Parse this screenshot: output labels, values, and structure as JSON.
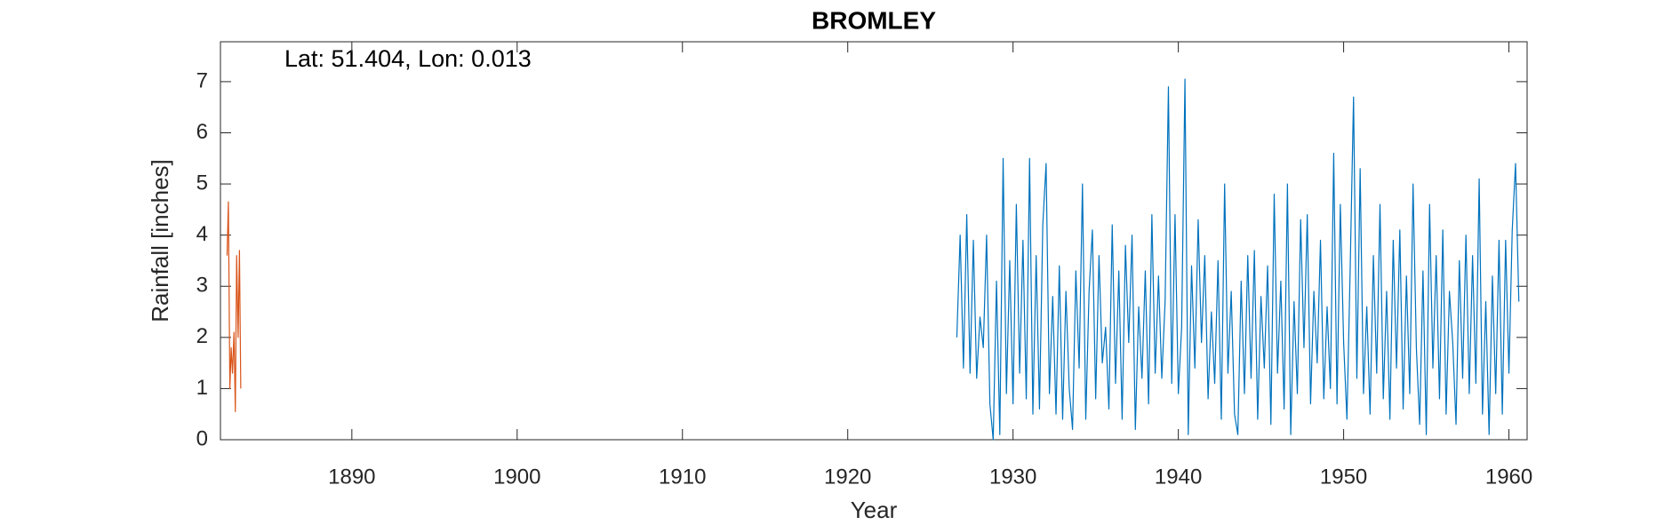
{
  "chart_data": {
    "type": "line",
    "title": "BROMLEY",
    "annotation": "Lat: 51.404, Lon: 0.013",
    "x_label": "Year",
    "y_label": "Rainfall [inches]",
    "xlim": [
      1882.05,
      1961.1
    ],
    "ylim": [
      0,
      7.78
    ],
    "xticks": [
      1890,
      1900,
      1910,
      1920,
      1930,
      1940,
      1950,
      1960
    ],
    "yticks": [
      0,
      1,
      2,
      3,
      4,
      5,
      6,
      7
    ],
    "grid": false,
    "series": [
      {
        "color": "#D95319",
        "x": [
          1882.45,
          1882.53,
          1882.62,
          1882.7,
          1882.78,
          1882.87,
          1882.95,
          1883.03,
          1883.12,
          1883.2,
          1883.28
        ],
        "values": [
          3.6,
          4.65,
          1.0,
          1.8,
          1.3,
          2.1,
          0.55,
          3.6,
          2.0,
          3.7,
          1.0
        ]
      },
      {
        "color": "#0072BD",
        "x": [
          1926.6,
          1926.8,
          1927,
          1927.2,
          1927.4,
          1927.6,
          1927.8,
          1928,
          1928.2,
          1928.4,
          1928.6,
          1928.8,
          1929,
          1929.2,
          1929.4,
          1929.6,
          1929.8,
          1930,
          1930.2,
          1930.4,
          1930.6,
          1930.8,
          1931,
          1931.2,
          1931.4,
          1931.6,
          1931.8,
          1932,
          1932.2,
          1932.4,
          1932.6,
          1932.8,
          1933,
          1933.2,
          1933.4,
          1933.6,
          1933.8,
          1934,
          1934.2,
          1934.4,
          1934.6,
          1934.8,
          1935,
          1935.2,
          1935.4,
          1935.6,
          1935.8,
          1936,
          1936.2,
          1936.4,
          1936.6,
          1936.8,
          1937,
          1937.2,
          1937.4,
          1937.6,
          1937.8,
          1938,
          1938.2,
          1938.4,
          1938.6,
          1938.8,
          1939,
          1939.2,
          1939.4,
          1939.6,
          1939.8,
          1940,
          1940.2,
          1940.4,
          1940.6,
          1940.8,
          1941,
          1941.2,
          1941.4,
          1941.6,
          1941.8,
          1942,
          1942.2,
          1942.4,
          1942.6,
          1942.8,
          1943,
          1943.2,
          1943.4,
          1943.6,
          1943.8,
          1944,
          1944.2,
          1944.4,
          1944.6,
          1944.8,
          1945,
          1945.2,
          1945.4,
          1945.6,
          1945.8,
          1946,
          1946.2,
          1946.4,
          1946.6,
          1946.8,
          1947,
          1947.2,
          1947.4,
          1947.6,
          1947.8,
          1948,
          1948.2,
          1948.4,
          1948.6,
          1948.8,
          1949,
          1949.2,
          1949.4,
          1949.6,
          1949.8,
          1950,
          1950.2,
          1950.4,
          1950.6,
          1950.8,
          1951,
          1951.2,
          1951.4,
          1951.6,
          1951.8,
          1952,
          1952.2,
          1952.4,
          1952.6,
          1952.8,
          1953,
          1953.2,
          1953.4,
          1953.6,
          1953.8,
          1954,
          1954.2,
          1954.4,
          1954.6,
          1954.8,
          1955,
          1955.2,
          1955.4,
          1955.6,
          1955.8,
          1956,
          1956.2,
          1956.4,
          1956.6,
          1956.8,
          1957,
          1957.2,
          1957.4,
          1957.6,
          1957.8,
          1958,
          1958.2,
          1958.4,
          1958.6,
          1958.8,
          1959,
          1959.2,
          1959.4,
          1959.6,
          1959.8,
          1960,
          1960.2,
          1960.4,
          1960.6
        ],
        "values": [
          2.0,
          4.0,
          1.4,
          4.4,
          1.3,
          3.9,
          1.2,
          2.4,
          1.8,
          4.0,
          0.7,
          0.0,
          3.1,
          0.1,
          5.5,
          0.9,
          3.5,
          0.7,
          4.6,
          1.3,
          3.9,
          0.8,
          5.5,
          0.5,
          3.6,
          0.6,
          4.2,
          5.4,
          0.9,
          2.8,
          0.5,
          3.4,
          0.4,
          2.9,
          1.0,
          0.2,
          3.3,
          1.4,
          5.0,
          0.4,
          2.9,
          4.1,
          0.8,
          3.6,
          1.5,
          2.2,
          0.6,
          4.2,
          1.1,
          3.3,
          0.4,
          3.8,
          1.9,
          4.0,
          0.2,
          2.6,
          1.2,
          3.3,
          0.7,
          4.4,
          1.3,
          3.2,
          1.2,
          2.7,
          6.9,
          1.1,
          4.4,
          0.9,
          2.2,
          7.05,
          0.1,
          3.4,
          1.4,
          4.3,
          1.9,
          3.6,
          0.8,
          2.5,
          1.1,
          3.5,
          0.4,
          5.0,
          1.3,
          2.9,
          0.5,
          0.1,
          3.1,
          0.9,
          3.6,
          1.2,
          3.7,
          0.4,
          2.8,
          1.4,
          3.4,
          0.3,
          4.8,
          1.3,
          3.1,
          0.6,
          5.0,
          0.1,
          2.7,
          0.9,
          4.3,
          1.8,
          4.4,
          0.7,
          2.9,
          1.5,
          3.9,
          0.8,
          2.6,
          1.0,
          5.6,
          0.7,
          4.6,
          1.9,
          0.4,
          3.4,
          6.7,
          1.2,
          5.3,
          0.9,
          2.6,
          0.5,
          3.6,
          1.3,
          4.6,
          0.8,
          2.9,
          0.4,
          3.9,
          1.4,
          4.1,
          0.6,
          3.2,
          0.9,
          5.0,
          1.8,
          0.3,
          3.3,
          0.1,
          4.6,
          1.4,
          3.6,
          0.8,
          4.1,
          0.5,
          2.9,
          1.9,
          0.3,
          3.5,
          1.2,
          4.0,
          0.9,
          3.6,
          1.1,
          5.1,
          0.5,
          2.7,
          0.1,
          3.2,
          0.9,
          3.9,
          0.5,
          3.9,
          1.3,
          4.1,
          5.4,
          2.7
        ]
      }
    ]
  }
}
